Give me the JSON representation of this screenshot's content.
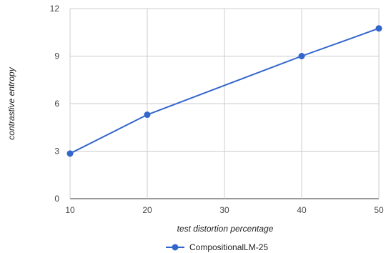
{
  "chart_data": {
    "type": "line",
    "xlabel": "test distortion percentage",
    "ylabel": "contrastive entropy",
    "xlim": [
      10,
      50
    ],
    "ylim": [
      0,
      12
    ],
    "x_ticks": [
      "10",
      "20",
      "30",
      "40",
      "50"
    ],
    "y_ticks": [
      "0",
      "3",
      "6",
      "9",
      "12"
    ],
    "grid": true,
    "legend_position": "bottom",
    "series": [
      {
        "name": "CompositionalLM-25",
        "color": "#3366cc",
        "x": [
          10,
          20,
          40,
          50
        ],
        "values": [
          2.85,
          5.3,
          9.0,
          10.75
        ]
      }
    ]
  }
}
